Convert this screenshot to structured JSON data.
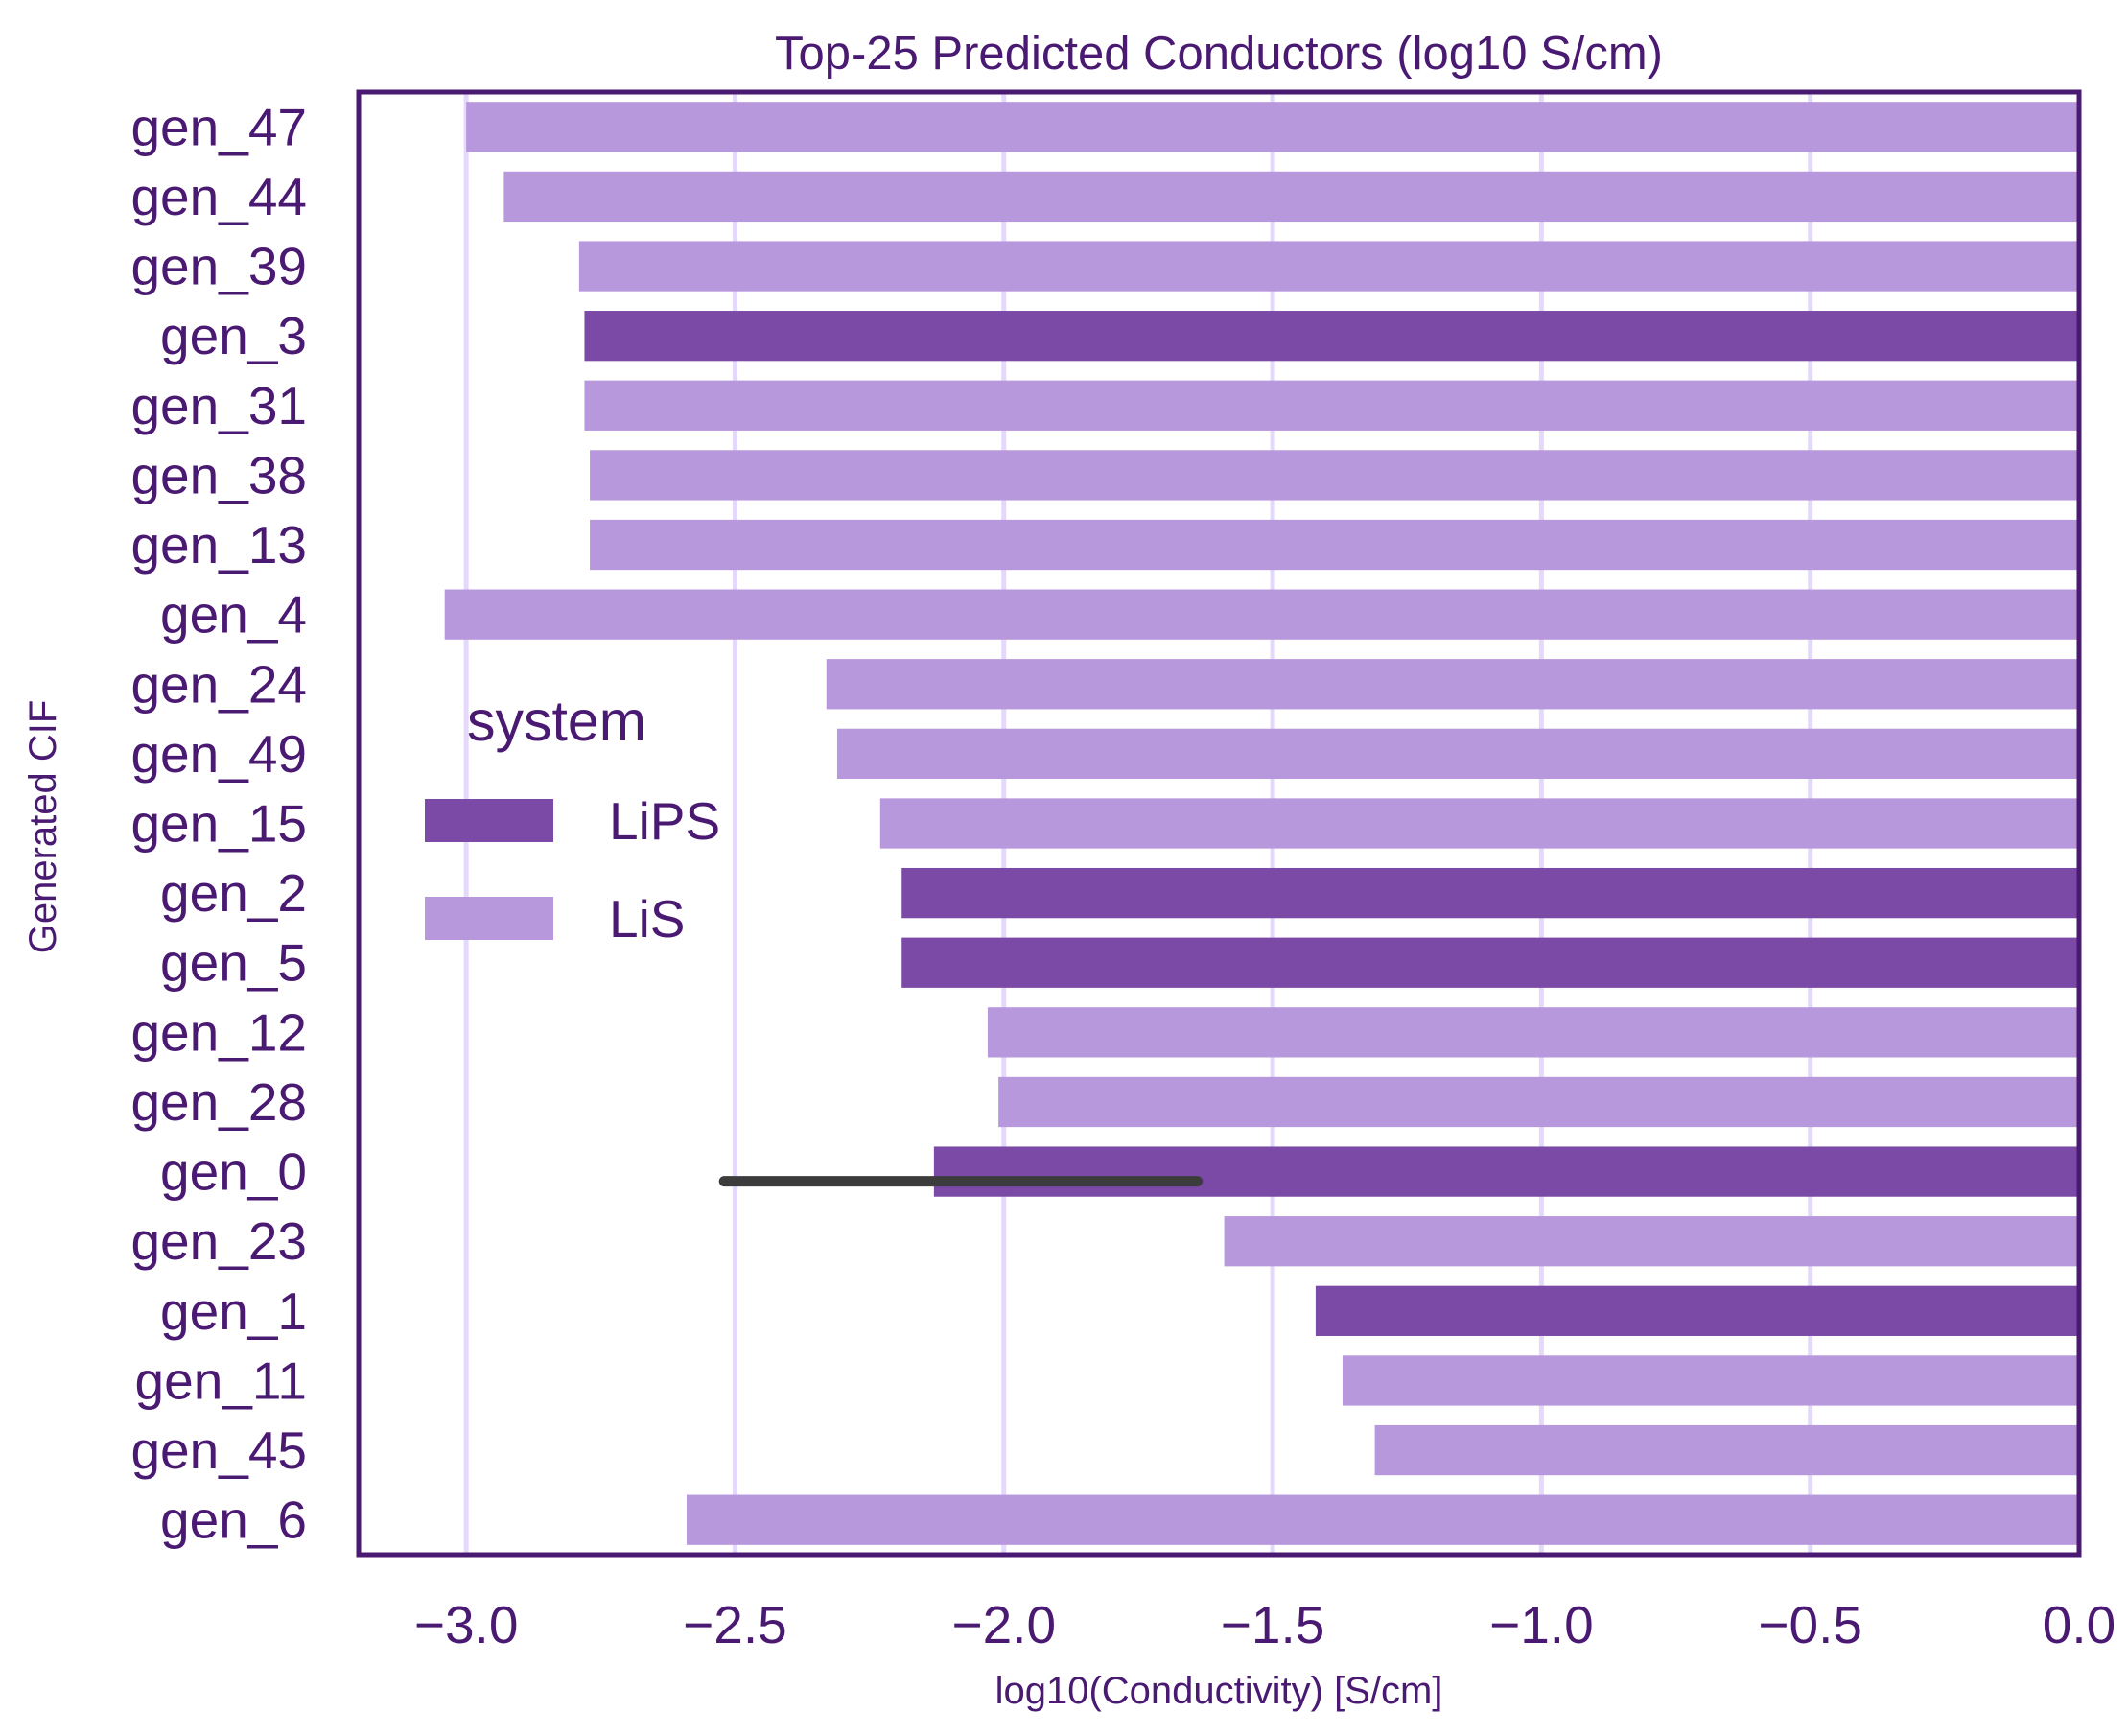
{
  "colors": {
    "text": "#4a1a72",
    "frame": "#4a1a72",
    "grid": "#e4d8fb",
    "error_bar": "#3c3c3c",
    "background": "#ffffff"
  },
  "chart_data": {
    "type": "bar",
    "orientation": "horizontal",
    "title": "Top-25 Predicted Conductors (log10 S/cm)",
    "xlabel": "log10(Conductivity) [S/cm]",
    "ylabel": "Generated CIF",
    "xlim": [
      -3.2,
      0.0
    ],
    "xticks": [
      -3.0,
      -2.5,
      -2.0,
      -1.5,
      -1.0,
      -0.5,
      0.0
    ],
    "xtick_labels": [
      "−3.0",
      "−2.5",
      "−2.0",
      "−1.5",
      "−1.0",
      "−0.5",
      "0.0"
    ],
    "grid": "vertical",
    "legend": {
      "title": "system",
      "placement": "center-left",
      "entries": [
        {
          "name": "LiPS",
          "color": "#7b4aa6"
        },
        {
          "name": "LiS",
          "color": "#b898dc"
        }
      ]
    },
    "categories": [
      "gen_47",
      "gen_44",
      "gen_39",
      "gen_3",
      "gen_31",
      "gen_38",
      "gen_13",
      "gen_4",
      "gen_24",
      "gen_49",
      "gen_15",
      "gen_2",
      "gen_5",
      "gen_12",
      "gen_28",
      "gen_0",
      "gen_23",
      "gen_1",
      "gen_11",
      "gen_45",
      "gen_6"
    ],
    "systems": [
      "LiS",
      "LiS",
      "LiS",
      "LiPS",
      "LiS",
      "LiS",
      "LiS",
      "LiS",
      "LiS",
      "LiS",
      "LiS",
      "LiPS",
      "LiPS",
      "LiS",
      "LiS",
      "LiPS",
      "LiS",
      "LiPS",
      "LiS",
      "LiS",
      "LiS"
    ],
    "values": [
      -3.0,
      -2.93,
      -2.79,
      -2.78,
      -2.78,
      -2.77,
      -2.77,
      -3.04,
      -2.33,
      -2.31,
      -2.23,
      -2.19,
      -2.19,
      -2.03,
      -2.01,
      -2.13,
      -1.59,
      -1.42,
      -1.37,
      -1.31,
      -2.59
    ],
    "error_bars": [
      {
        "category": "gen_0",
        "low": -2.52,
        "high": -1.64
      }
    ]
  }
}
